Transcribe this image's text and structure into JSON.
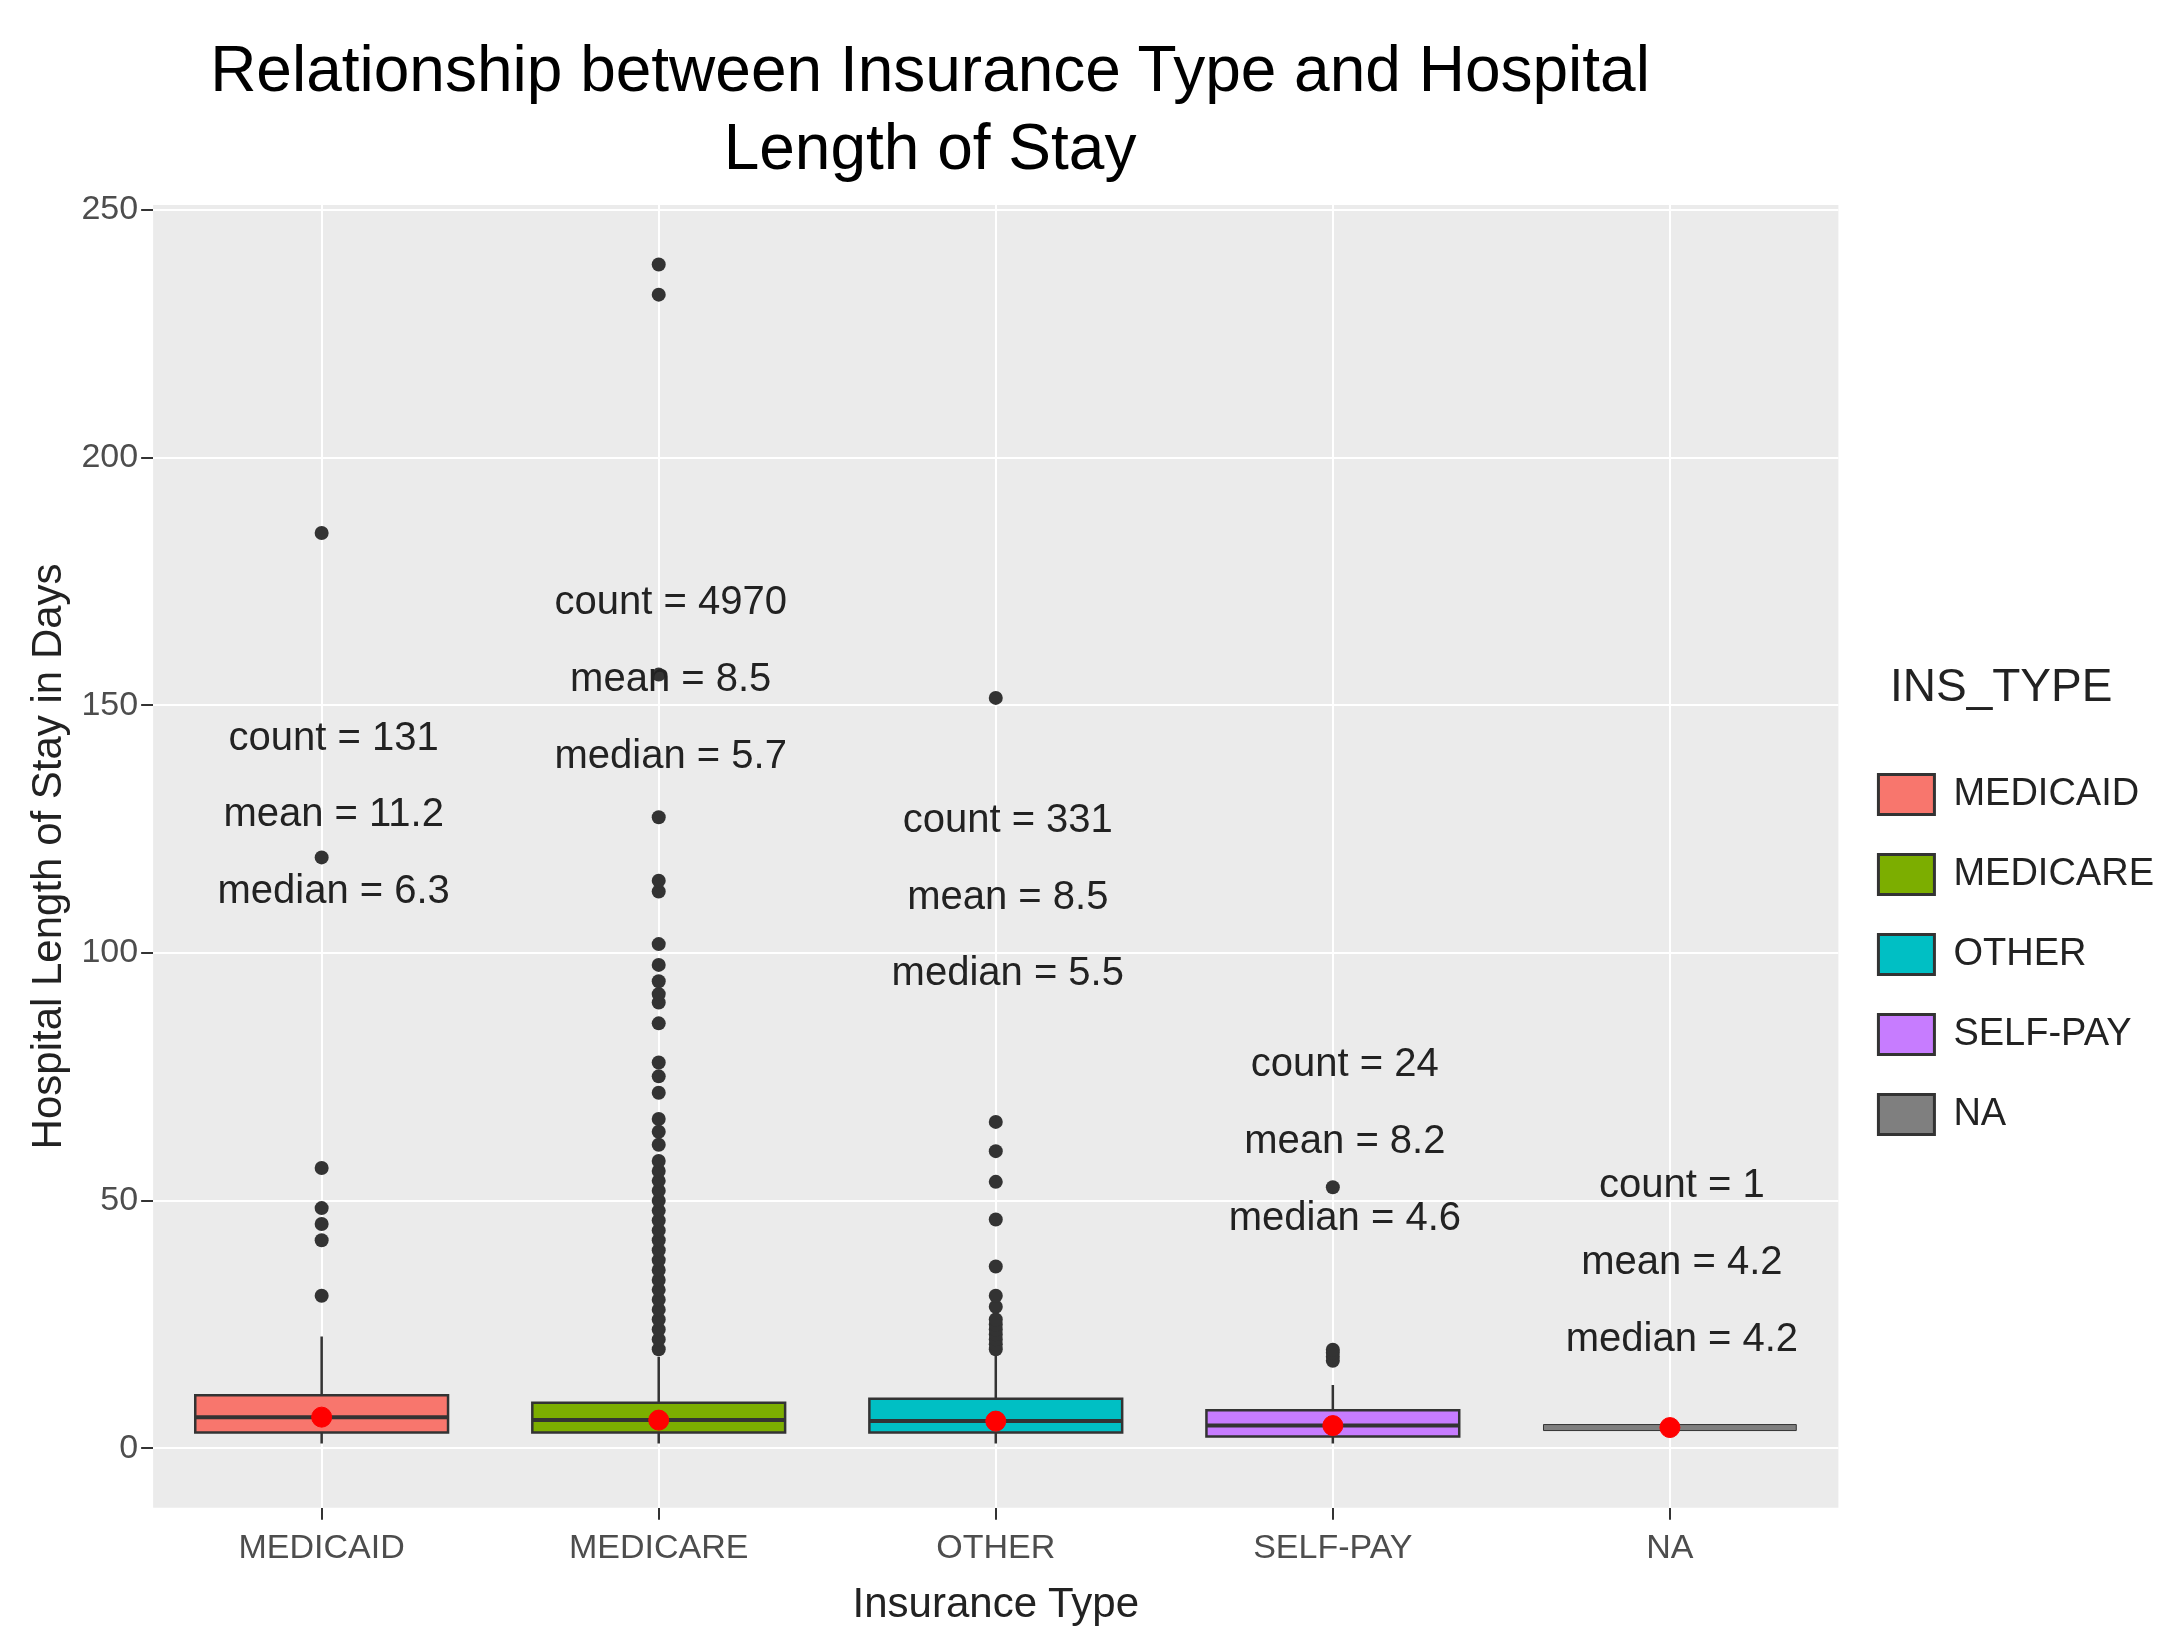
{
  "chart_data": {
    "type": "box",
    "title": "Relationship between Insurance Type and Hospital Length of Stay",
    "xlabel": "Insurance Type",
    "ylabel": "Hospital Length of Stay in Days",
    "legend_title": "INS_TYPE",
    "legend": "right",
    "grid": true,
    "categories": [
      "MEDICAID",
      "MEDICARE",
      "OTHER",
      "SELF-PAY",
      "NA"
    ],
    "ylim": [
      -12,
      251
    ],
    "yticks": [
      0,
      50,
      100,
      150,
      200,
      250
    ],
    "series": [
      {
        "type": "box",
        "name": "MEDICAID",
        "color": "#f8766d",
        "boxes": [
          {
            "low": 1,
            "q1": 3.2,
            "median": 6.3,
            "q3": 10.7,
            "high": 22.6,
            "outliers": [
              30.8,
              42,
              45.3,
              48.5,
              56.6,
              119.3,
              184.8
            ]
          },
          null,
          null,
          null,
          null
        ]
      },
      {
        "type": "box",
        "name": "MEDICARE",
        "color": "#7cae00",
        "boxes": [
          null,
          {
            "low": 1,
            "q1": 3.2,
            "median": 5.7,
            "q3": 9.2,
            "high": 18.5,
            "outliers": [
              20,
              22,
              24,
              26,
              28,
              30,
              32,
              34,
              36,
              38,
              40,
              42,
              44,
              46,
              48,
              50,
              52,
              54,
              56,
              58,
              61.3,
              63.9,
              66.5,
              71.8,
              75.1,
              77.9,
              85.8,
              90,
              91.7,
              94.3,
              97.6,
              101.8,
              112.4,
              114.6,
              127.4,
              156.2,
              232.9,
              239
            ]
          },
          null,
          null,
          null
        ]
      },
      {
        "type": "box",
        "name": "OTHER",
        "color": "#00bfc4",
        "boxes": [
          null,
          null,
          {
            "low": 1,
            "q1": 3.2,
            "median": 5.5,
            "q3": 10,
            "high": 19,
            "outliers": [
              20,
              21,
              22,
              23,
              24,
              25,
              26,
              28.6,
              30.8,
              36.7,
              46.2,
              53.8,
              60,
              65.9,
              151.5
            ]
          },
          null,
          null
        ]
      },
      {
        "type": "box",
        "name": "SELF-PAY",
        "color": "#c77cff",
        "boxes": [
          null,
          null,
          null,
          {
            "low": 1,
            "q1": 2.4,
            "median": 4.6,
            "q3": 7.7,
            "high": 12.8,
            "outliers": [
              17.7,
              18.5,
              19.3,
              19.9,
              52.7
            ]
          },
          null
        ]
      },
      {
        "type": "box",
        "name": "NA",
        "color": "#7f7f7f",
        "boxes": [
          null,
          null,
          null,
          null,
          {
            "low": 4.2,
            "q1": 4.2,
            "median": 4.2,
            "q3": 4.2,
            "high": 4.2
          }
        ]
      },
      {
        "type": "scatter",
        "color": "#ff0000",
        "x": [
          "MEDICAID",
          "MEDICARE",
          "OTHER",
          "SELF-PAY",
          "NA"
        ],
        "values": [
          6.3,
          5.7,
          5.5,
          4.6,
          4.2
        ]
      }
    ],
    "annotations": [
      "count = 131",
      "mean = 11.2",
      "median = 6.3",
      "count = 4970",
      "mean = 8.5",
      "median = 5.7",
      "count = 331",
      "mean = 8.5",
      "median = 5.5",
      "count = 24",
      "mean = 8.2",
      "median = 4.6",
      "count = 1",
      "mean = 4.2",
      "median = 4.2"
    ]
  }
}
